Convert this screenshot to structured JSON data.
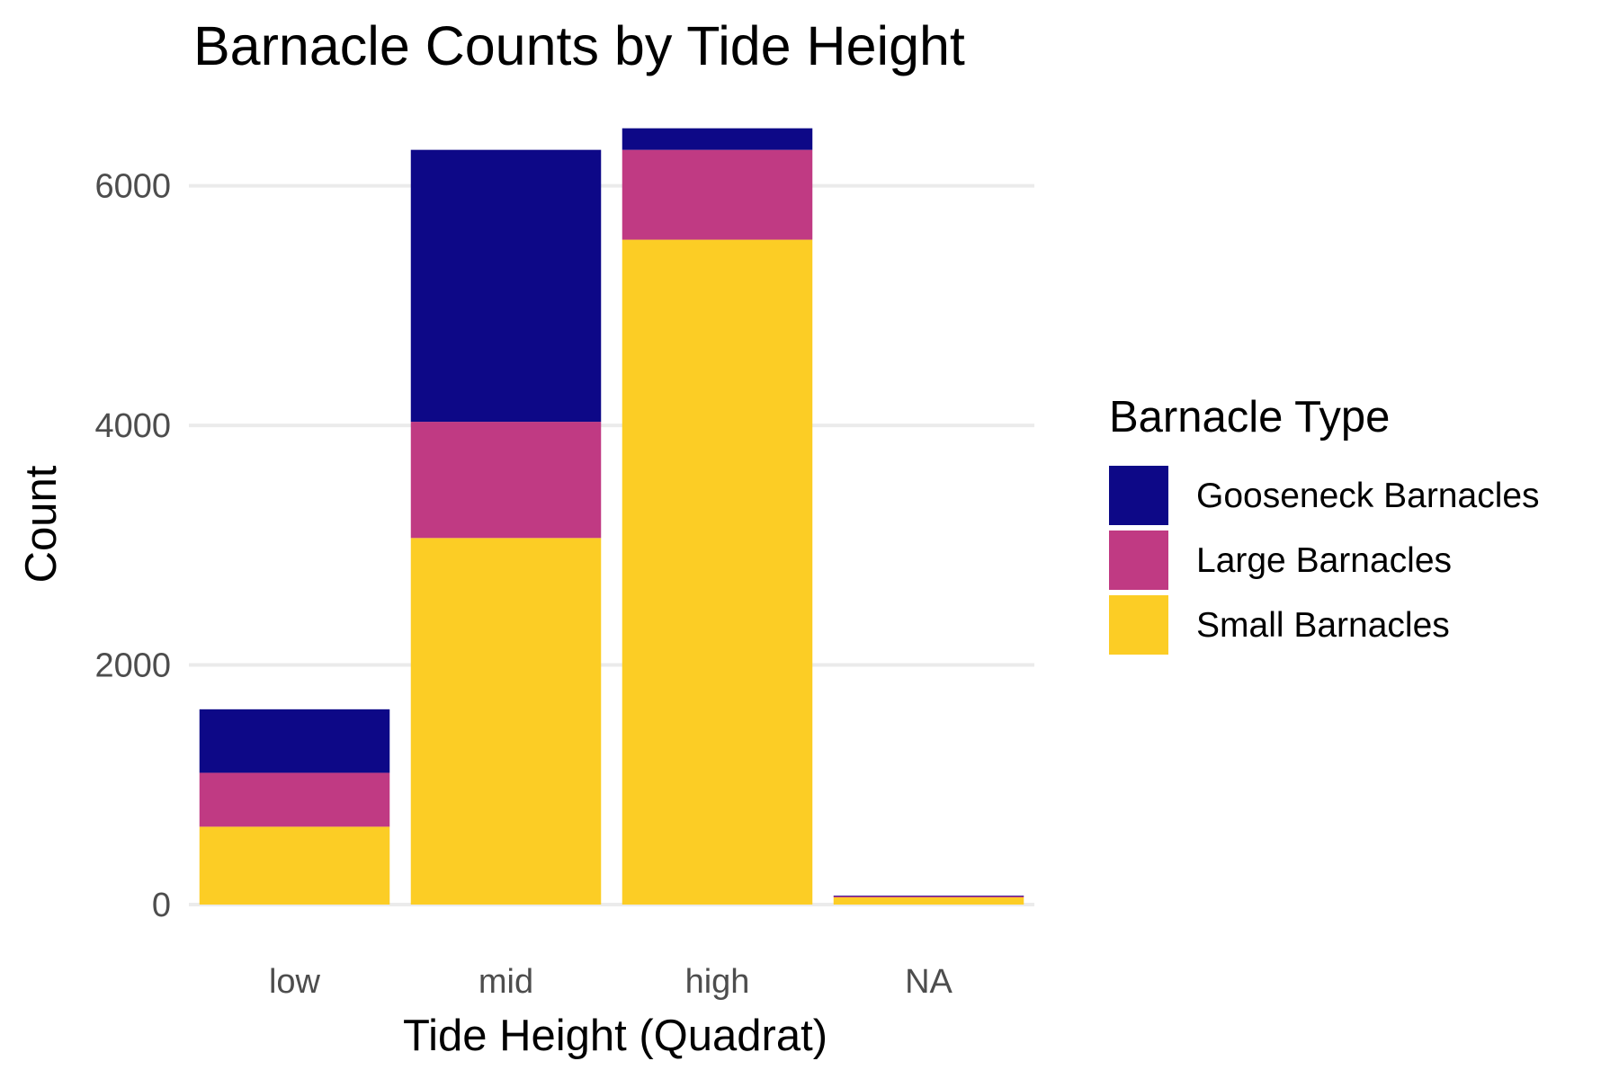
{
  "chart_data": {
    "type": "bar",
    "stacked": true,
    "title": "Barnacle Counts by Tide Height",
    "xlabel": "Tide Height (Quadrat)",
    "ylabel": "Count",
    "categories": [
      "low",
      "mid",
      "high",
      "NA"
    ],
    "ylim": [
      0,
      6500
    ],
    "yticks": [
      0,
      2000,
      4000,
      6000
    ],
    "grid": true,
    "legend": {
      "title": "Barnacle Type",
      "placement": "right"
    },
    "series": [
      {
        "name": "Small Barnacles",
        "color": "#fccd25",
        "values": [
          650,
          3060,
          5550,
          60
        ]
      },
      {
        "name": "Large Barnacles",
        "color": "#c03a83",
        "values": [
          450,
          970,
          750,
          10
        ]
      },
      {
        "name": "Gooseneck Barnacles",
        "color": "#0d0887",
        "values": [
          530,
          2270,
          180,
          5
        ]
      }
    ],
    "legend_order": [
      "Gooseneck Barnacles",
      "Large Barnacles",
      "Small Barnacles"
    ]
  }
}
